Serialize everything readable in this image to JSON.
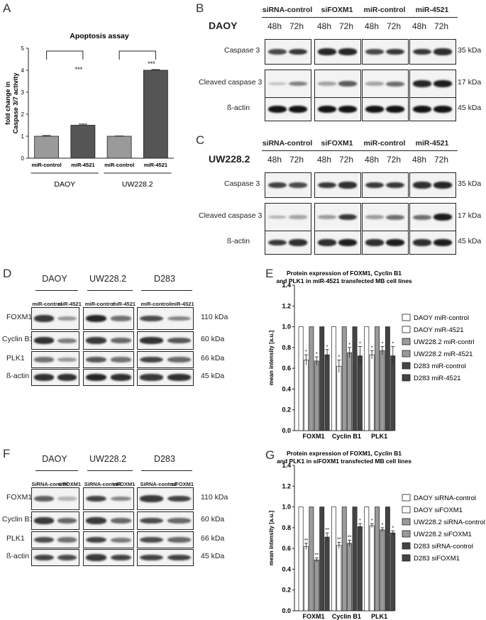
{
  "panels": {
    "A": "A",
    "B": "B",
    "C": "C",
    "D": "D",
    "E": "E",
    "F": "F",
    "G": "G"
  },
  "panelA": {
    "chart_data": {
      "type": "bar",
      "title": "Apoptosis assay",
      "ylabel": "fold change in Caspase 3/7 activity",
      "categories": [
        "miR-control",
        "miR-4521",
        "miR-control",
        "miR-4521"
      ],
      "values": [
        1.0,
        1.5,
        1.0,
        4.0
      ],
      "errors": [
        0.03,
        0.05,
        0.01,
        0.03
      ],
      "colors": [
        "#9a9a9a",
        "#555555",
        "#9a9a9a",
        "#555555"
      ],
      "significance": [
        "",
        "***",
        "",
        "***"
      ],
      "groups": [
        "DAOY",
        "UW228.2"
      ],
      "ylim": [
        0,
        5
      ],
      "yticks": [
        "0",
        "1",
        "2",
        "3",
        "4",
        "5"
      ]
    }
  },
  "panelB": {
    "cell_line": "DAOY",
    "groups": [
      "siRNA-control",
      "siFOXM1",
      "miR-control",
      "miR-4521"
    ],
    "timepoints": [
      "48h",
      "72h",
      "48h",
      "72h",
      "48h",
      "72h",
      "48h",
      "72h"
    ],
    "rows": [
      "Caspase 3",
      "Cleaved caspase 3",
      "ß-actin"
    ],
    "kda": [
      "35 kDa",
      "17 kDa",
      "45 kDa"
    ]
  },
  "panelC": {
    "cell_line": "UW228.2",
    "groups": [
      "siRNA-control",
      "siFOXM1",
      "miR-control",
      "miR-4521"
    ],
    "timepoints": [
      "48h",
      "72h",
      "48h",
      "72h",
      "48h",
      "72h",
      "48h",
      "72h"
    ],
    "rows": [
      "Caspase 3",
      "Cleaved caspase 3",
      "ß-actin"
    ],
    "kda": [
      "35 kDa",
      "17 kDa",
      "45 kDa"
    ]
  },
  "panelD": {
    "cell_lines": [
      "DAOY",
      "UW228.2",
      "D283"
    ],
    "lanes": [
      "miR-control",
      "miR-4521",
      "miR-control",
      "miR-4521",
      "miR-control",
      "miR-4521"
    ],
    "rows": [
      "FOXM1",
      "Cyclin B1",
      "PLK1",
      "ß-actin"
    ],
    "kda": [
      "110 kDa",
      "60 kDa",
      "66 kDa",
      "45 kDa"
    ]
  },
  "panelF": {
    "cell_lines": [
      "DAOY",
      "UW228.2",
      "D283"
    ],
    "lanes": [
      "SiRNA-control",
      "siFOXM1",
      "SiRNA-control",
      "siFOXM1",
      "SiRNA-control",
      "siFOXM1"
    ],
    "rows": [
      "FOXM1",
      "Cyclin B1",
      "PLK1",
      "ß-actin"
    ],
    "kda": [
      "110 kDa",
      "60 kDa",
      "66 kDa",
      "45 kDa"
    ]
  },
  "panelE": {
    "chart_data": {
      "type": "bar",
      "title": "Protein expression of FOXM1, Cyclin B1 and PLK1 in miR-4521 transfected MB cell lines",
      "title_lines": [
        "Protein expression of FOXM1, Cyclin B1",
        "and PLK1 in miR-4521 transfected MB cell lines"
      ],
      "ylabel": "mean intensity [a.u.]",
      "categories": [
        "FOXM1",
        "Cyclin B1",
        "PLK1"
      ],
      "ylim": [
        0,
        1.4
      ],
      "yticks": [
        "0.0",
        "0.2",
        "0.4",
        "0.6",
        "0.8",
        "1.0",
        "1.2",
        "1.4"
      ],
      "series": [
        {
          "name": "DAOY miR-control",
          "color": "#ffffff",
          "values": [
            1.0,
            1.0,
            1.0
          ],
          "errors": [
            0,
            0,
            0
          ],
          "sig": [
            "",
            "",
            ""
          ]
        },
        {
          "name": "DAOY miR-4521",
          "color": "#ffffff",
          "values": [
            0.68,
            0.62,
            0.73
          ],
          "errors": [
            0.05,
            0.06,
            0.04
          ],
          "sig": [
            "*",
            "*",
            "*"
          ]
        },
        {
          "name": "UW228.2 miR-contrl",
          "color": "#9a9a9a",
          "values": [
            1.0,
            1.0,
            1.0
          ],
          "errors": [
            0,
            0,
            0
          ],
          "sig": [
            "",
            "",
            ""
          ]
        },
        {
          "name": "UW228.2 miR-4521",
          "color": "#9a9a9a",
          "values": [
            0.67,
            0.75,
            0.77
          ],
          "errors": [
            0.04,
            0.05,
            0.04
          ],
          "sig": [
            "*",
            "*",
            "*"
          ]
        },
        {
          "name": "D283 miR-control",
          "color": "#444444",
          "values": [
            1.0,
            1.0,
            1.0
          ],
          "errors": [
            0,
            0,
            0
          ],
          "sig": [
            "",
            "",
            ""
          ]
        },
        {
          "name": "D283 miR-4521",
          "color": "#444444",
          "values": [
            0.73,
            0.72,
            0.72
          ],
          "errors": [
            0.05,
            0.09,
            0.09
          ],
          "sig": [
            "*",
            "*",
            "*"
          ]
        }
      ]
    }
  },
  "panelG": {
    "chart_data": {
      "type": "bar",
      "title": "Protein expression of FOXM1, Cyclin B1 and PLK1 in siFOXM1 transfected MB cell lines",
      "title_lines": [
        "Protein expression of FOXM1, Cyclin B1",
        "and PLK1 in siFOXM1 transfected MB cell lines"
      ],
      "ylabel": "mean intensity [a.u.]",
      "categories": [
        "FOXM1",
        "Cyclin B1",
        "PLK1"
      ],
      "ylim": [
        0,
        1.4
      ],
      "yticks": [
        "0.0",
        "0.2",
        "0.4",
        "0.6",
        "0.8",
        "1.0",
        "1.2",
        "1.4"
      ],
      "series": [
        {
          "name": "DAOY siRNA-control",
          "color": "#ffffff",
          "values": [
            1.0,
            1.0,
            1.0
          ],
          "errors": [
            0,
            0,
            0
          ],
          "sig": [
            "",
            "",
            ""
          ]
        },
        {
          "name": "DAOY siFOXM1",
          "color": "#ffffff",
          "values": [
            0.62,
            0.63,
            0.82
          ],
          "errors": [
            0.03,
            0.03,
            0.02
          ],
          "sig": [
            "**",
            "**",
            "*"
          ]
        },
        {
          "name": "UW228.2 siRNA-control",
          "color": "#9a9a9a",
          "values": [
            1.0,
            1.0,
            1.0
          ],
          "errors": [
            0,
            0,
            0
          ],
          "sig": [
            "",
            "",
            ""
          ]
        },
        {
          "name": "UW228.2 siFOXM1",
          "color": "#9a9a9a",
          "values": [
            0.49,
            0.65,
            0.78
          ],
          "errors": [
            0.02,
            0.03,
            0.02
          ],
          "sig": [
            "**",
            "**",
            "*"
          ]
        },
        {
          "name": "D283 siRNA-control",
          "color": "#444444",
          "values": [
            1.0,
            1.0,
            1.0
          ],
          "errors": [
            0,
            0,
            0
          ],
          "sig": [
            "",
            "",
            ""
          ]
        },
        {
          "name": "D283 siFOXM1",
          "color": "#444444",
          "values": [
            0.71,
            0.81,
            0.75
          ],
          "errors": [
            0.04,
            0.03,
            0.02
          ],
          "sig": [
            "**",
            "*",
            "*"
          ]
        }
      ]
    }
  }
}
